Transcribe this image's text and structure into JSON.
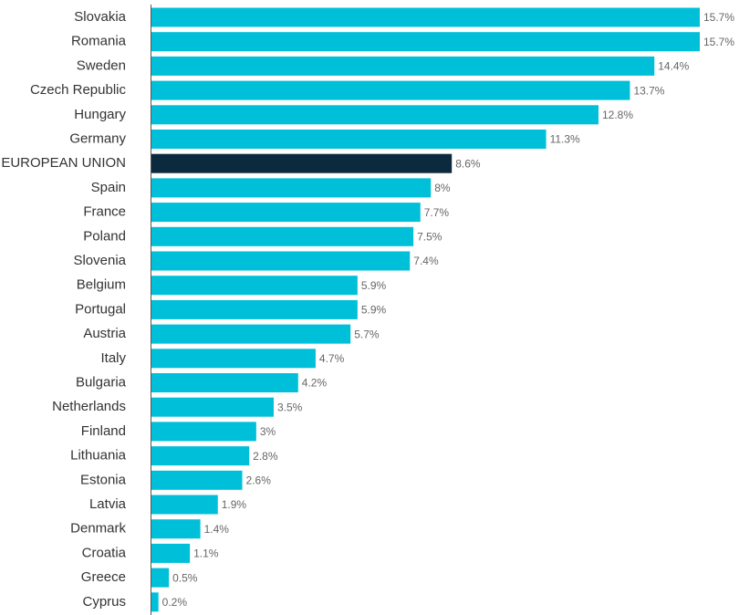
{
  "chart_data": {
    "type": "hbar",
    "categories": [
      "Slovakia",
      "Romania",
      "Sweden",
      "Czech Republic",
      "Hungary",
      "Germany",
      "EUROPEAN UNION",
      "Spain",
      "France",
      "Poland",
      "Slovenia",
      "Belgium",
      "Portugal",
      "Austria",
      "Italy",
      "Bulgaria",
      "Netherlands",
      "Finland",
      "Lithuania",
      "Estonia",
      "Latvia",
      "Denmark",
      "Croatia",
      "Greece",
      "Cyprus"
    ],
    "values": [
      15.7,
      15.7,
      14.4,
      13.7,
      12.8,
      11.3,
      8.6,
      8,
      7.7,
      7.5,
      7.4,
      5.9,
      5.9,
      5.7,
      4.7,
      4.2,
      3.5,
      3,
      2.8,
      2.6,
      1.9,
      1.4,
      1.1,
      0.5,
      0.2
    ],
    "value_labels": [
      "15.7%",
      "15.7%",
      "14.4%",
      "13.7%",
      "12.8%",
      "11.3%",
      "8.6%",
      "8%",
      "7.7%",
      "7.5%",
      "7.4%",
      "5.9%",
      "5.9%",
      "5.7%",
      "4.7%",
      "4.2%",
      "3.5%",
      "3%",
      "2.8%",
      "2.6%",
      "1.9%",
      "1.4%",
      "1.1%",
      "0.5%",
      "0.2%"
    ],
    "colors": [
      "#00bfd8",
      "#00bfd8",
      "#00bfd8",
      "#00bfd8",
      "#00bfd8",
      "#00bfd8",
      "#0c2a3e",
      "#00bfd8",
      "#00bfd8",
      "#00bfd8",
      "#00bfd8",
      "#00bfd8",
      "#00bfd8",
      "#00bfd8",
      "#00bfd8",
      "#00bfd8",
      "#00bfd8",
      "#00bfd8",
      "#00bfd8",
      "#00bfd8",
      "#00bfd8",
      "#00bfd8",
      "#00bfd8",
      "#00bfd8",
      "#00bfd8"
    ]
  }
}
